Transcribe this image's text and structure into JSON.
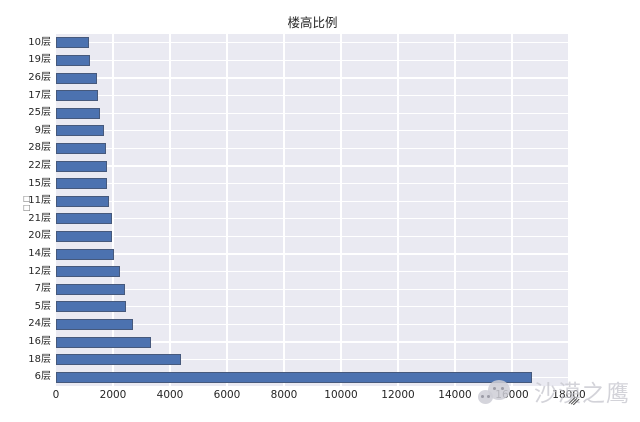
{
  "chart_data": {
    "type": "bar",
    "orientation": "horizontal",
    "title": "楼高比例",
    "xlabel": "",
    "ylabel_display": "□□",
    "categories": [
      "10层",
      "19层",
      "26层",
      "17层",
      "25层",
      "9层",
      "28层",
      "22层",
      "15层",
      "11层",
      "21层",
      "20层",
      "14层",
      "12层",
      "7层",
      "5层",
      "24层",
      "16层",
      "18层",
      "6层"
    ],
    "values": [
      1160,
      1210,
      1450,
      1480,
      1530,
      1700,
      1760,
      1790,
      1800,
      1860,
      1950,
      1980,
      2030,
      2260,
      2410,
      2450,
      2700,
      3350,
      4400,
      16700
    ],
    "xticks": [
      0,
      2000,
      4000,
      6000,
      8000,
      10000,
      12000,
      14000,
      16000,
      18000
    ],
    "xlim": [
      0,
      18000
    ],
    "grid": true,
    "legend": null,
    "plot_bg_color": "#EAEAF2",
    "grid_color": "#FFFFFF",
    "bar_color": "#4C72B0",
    "bar_edge_color": "#46597C",
    "text_color": "#262626"
  },
  "watermark": {
    "text": "沙漠之鹰",
    "logo": "wechat-smiley-icon",
    "squiggle": "///"
  }
}
